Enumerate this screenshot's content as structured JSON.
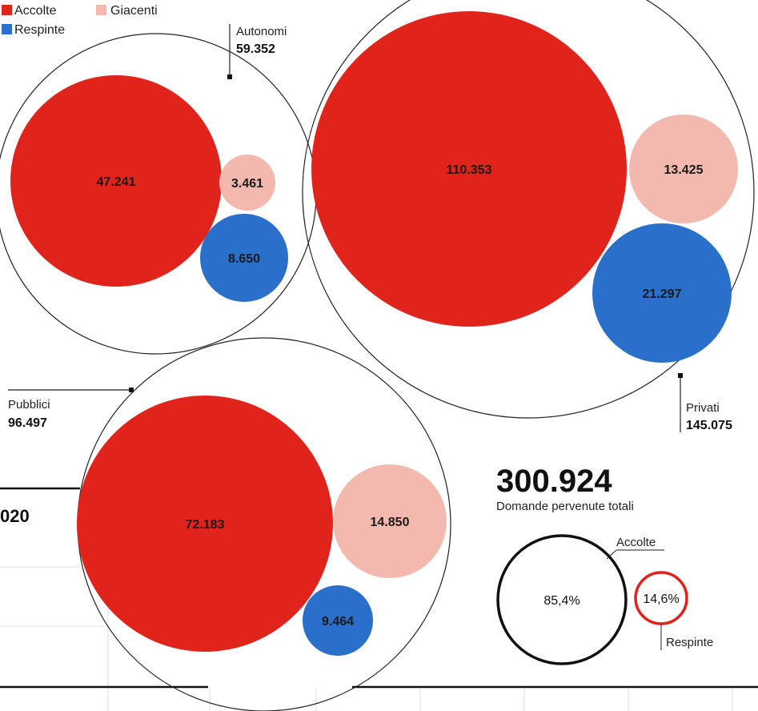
{
  "legend": [
    {
      "label": "Accolte",
      "color": "#e0231b"
    },
    {
      "label": "Giacenti",
      "color": "#f3b9ae"
    },
    {
      "label": "Respinte",
      "color": "#2a6fc9"
    }
  ],
  "chart_data": [
    {
      "type": "bubble",
      "title": "",
      "categories": [
        {
          "name": "Autonomi",
          "total": "59.352",
          "accolte": 47241,
          "giacenti": 3461,
          "respinte": 8650
        },
        {
          "name": "Privati",
          "total": "145.075",
          "accolte": 110353,
          "giacenti": 13425,
          "respinte": 21297
        },
        {
          "name": "Pubblici",
          "total": "96.497",
          "accolte": 72183,
          "giacenti": 14850,
          "respinte": 9464
        }
      ],
      "value_labels": {
        "Autonomi": {
          "accolte": "47.241",
          "giacenti": "3.461",
          "respinte": "8.650"
        },
        "Privati": {
          "accolte": "110.353",
          "giacenti": "13.425",
          "respinte": "21.297"
        },
        "Pubblici": {
          "accolte": "72.183",
          "giacenti": "14.850",
          "respinte": "9.464"
        }
      },
      "colors": {
        "accolte": "#e0231b",
        "giacenti": "#f3b9ae",
        "respinte": "#2a6fc9"
      }
    },
    {
      "type": "bubble",
      "title": "",
      "total": "300.924",
      "total_label": "Domande pervenute totali",
      "shares": [
        {
          "name": "Accolte",
          "value": 85.4,
          "label": "85,4%"
        },
        {
          "name": "Respinte",
          "value": 14.6,
          "label": "14,6%"
        }
      ],
      "colors": {
        "accolte_outline": "#111111",
        "respinte_outline": "#e0231b"
      }
    }
  ],
  "partial_year": "020"
}
